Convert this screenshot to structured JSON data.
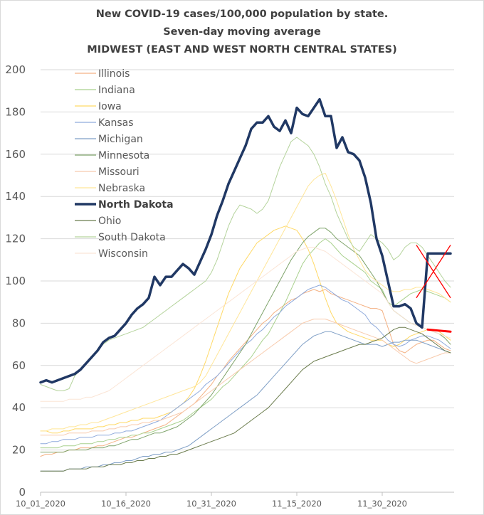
{
  "chart_data": {
    "type": "line",
    "title": [
      "New COVID-19 cases/100,000 population by state.",
      "Seven-day moving average",
      "MIDWEST (EAST AND WEST NORTH CENTRAL STATES)"
    ],
    "xlabel": "",
    "ylabel": "",
    "ylim": [
      0,
      200
    ],
    "y_ticks": [
      0,
      20,
      40,
      60,
      80,
      100,
      120,
      140,
      160,
      180,
      200
    ],
    "x_tick_labels": [
      "10_01_2020",
      "10_16_2020",
      "10_31_2020",
      "11_15_2020",
      "11_30_2020"
    ],
    "x_tick_day_index": [
      0,
      15,
      30,
      45,
      60
    ],
    "grid": "horizontal",
    "legend_position": "top-left",
    "series": [
      {
        "name": "Illinois",
        "color": "#f4b183",
        "width": 1,
        "bold": false,
        "values": [
          17,
          18,
          18,
          19,
          19,
          20,
          20,
          21,
          21,
          21,
          22,
          22,
          23,
          24,
          25,
          26,
          26,
          27,
          28,
          29,
          30,
          31,
          32,
          34,
          36,
          38,
          40,
          42,
          45,
          48,
          51,
          55,
          58,
          62,
          65,
          68,
          71,
          74,
          77,
          80,
          82,
          85,
          87,
          89,
          91,
          92,
          94,
          95,
          96,
          95,
          96,
          94,
          93,
          92,
          91,
          90,
          89,
          88,
          87,
          87,
          86,
          78,
          70,
          67,
          66,
          68,
          70,
          71,
          72,
          72,
          70,
          68,
          67
        ]
      },
      {
        "name": "Indiana",
        "color": "#a9d18e",
        "width": 1,
        "bold": false,
        "values": [
          21,
          21,
          21,
          21,
          22,
          22,
          22,
          23,
          23,
          23,
          24,
          24,
          25,
          25,
          26,
          26,
          27,
          27,
          28,
          28,
          29,
          30,
          31,
          32,
          33,
          34,
          36,
          38,
          40,
          42,
          44,
          47,
          50,
          52,
          55,
          58,
          61,
          64,
          68,
          72,
          75,
          80,
          85,
          90,
          96,
          102,
          108,
          112,
          115,
          118,
          120,
          118,
          115,
          112,
          110,
          108,
          106,
          104,
          100,
          98,
          96,
          90,
          88,
          90,
          92,
          94,
          95,
          96,
          95,
          94,
          93,
          92,
          90
        ]
      },
      {
        "name": "Iowa",
        "color": "#ffd966",
        "width": 1,
        "bold": false,
        "values": [
          29,
          29,
          28,
          28,
          29,
          29,
          30,
          30,
          30,
          30,
          31,
          31,
          32,
          32,
          33,
          33,
          34,
          34,
          35,
          35,
          35,
          36,
          37,
          38,
          40,
          42,
          45,
          49,
          55,
          62,
          70,
          78,
          86,
          94,
          100,
          106,
          110,
          114,
          118,
          120,
          122,
          124,
          125,
          126,
          125,
          124,
          120,
          115,
          108,
          100,
          92,
          85,
          80,
          78,
          76,
          75,
          74,
          73,
          72,
          72,
          72,
          70,
          69,
          70,
          72,
          74,
          75,
          76,
          77,
          77,
          76,
          74,
          72
        ]
      },
      {
        "name": "Kansas",
        "color": "#8faadc",
        "width": 1,
        "bold": false,
        "values": [
          23,
          23,
          24,
          24,
          25,
          25,
          25,
          26,
          26,
          26,
          27,
          27,
          27,
          28,
          28,
          29,
          29,
          30,
          31,
          32,
          33,
          34,
          36,
          38,
          40,
          42,
          44,
          46,
          48,
          51,
          53,
          55,
          58,
          61,
          64,
          67,
          70,
          72,
          75,
          77,
          80,
          83,
          85,
          88,
          90,
          92,
          94,
          96,
          97,
          98,
          97,
          95,
          93,
          91,
          90,
          88,
          86,
          84,
          80,
          78,
          75,
          72,
          70,
          69,
          70,
          72,
          73,
          74,
          74,
          73,
          72,
          70,
          68
        ]
      },
      {
        "name": "Michigan",
        "color": "#7f9fc6",
        "width": 1,
        "bold": false,
        "values": [
          10,
          10,
          10,
          10,
          10,
          11,
          11,
          11,
          12,
          12,
          12,
          13,
          13,
          14,
          14,
          15,
          15,
          16,
          17,
          17,
          18,
          18,
          19,
          19,
          20,
          21,
          22,
          24,
          26,
          28,
          30,
          32,
          34,
          36,
          38,
          40,
          42,
          44,
          46,
          49,
          52,
          55,
          58,
          61,
          64,
          67,
          70,
          72,
          74,
          75,
          76,
          76,
          75,
          74,
          73,
          72,
          71,
          70,
          70,
          70,
          69,
          70,
          71,
          71,
          72,
          72,
          72,
          71,
          70,
          69,
          68,
          67,
          66
        ]
      },
      {
        "name": "Minnesota",
        "color": "#7ea36a",
        "width": 1,
        "bold": false,
        "values": [
          19,
          19,
          19,
          19,
          19,
          20,
          20,
          20,
          20,
          21,
          21,
          21,
          22,
          22,
          23,
          24,
          25,
          25,
          26,
          27,
          28,
          28,
          29,
          30,
          31,
          33,
          35,
          37,
          40,
          43,
          46,
          50,
          54,
          58,
          62,
          66,
          70,
          75,
          80,
          85,
          90,
          95,
          100,
          105,
          110,
          114,
          118,
          121,
          123,
          125,
          125,
          123,
          120,
          118,
          116,
          114,
          112,
          108,
          104,
          100,
          95,
          90,
          86,
          84,
          82,
          80,
          79,
          78,
          77,
          76,
          75,
          73,
          70
        ]
      },
      {
        "name": "Missouri",
        "color": "#f8cbad",
        "width": 1,
        "bold": false,
        "values": [
          27,
          27,
          27,
          27,
          27,
          28,
          28,
          28,
          28,
          29,
          29,
          29,
          30,
          30,
          31,
          31,
          32,
          32,
          33,
          33,
          34,
          34,
          35,
          36,
          37,
          38,
          40,
          42,
          44,
          46,
          48,
          50,
          52,
          54,
          56,
          58,
          60,
          62,
          64,
          66,
          68,
          70,
          72,
          74,
          76,
          78,
          80,
          81,
          82,
          82,
          82,
          81,
          80,
          79,
          78,
          77,
          76,
          75,
          74,
          73,
          72,
          70,
          68,
          66,
          64,
          62,
          61,
          62,
          63,
          64,
          65,
          66,
          66
        ]
      },
      {
        "name": "Nebraska",
        "color": "#ffe699",
        "width": 1,
        "bold": false,
        "values": [
          29,
          29,
          30,
          30,
          30,
          31,
          31,
          32,
          32,
          33,
          33,
          34,
          35,
          36,
          37,
          38,
          39,
          40,
          41,
          42,
          43,
          44,
          45,
          46,
          47,
          48,
          49,
          50,
          52,
          55,
          60,
          65,
          70,
          75,
          80,
          85,
          90,
          95,
          100,
          105,
          110,
          115,
          120,
          125,
          130,
          135,
          140,
          145,
          148,
          150,
          151,
          145,
          138,
          130,
          122,
          115,
          110,
          105,
          102,
          100,
          98,
          96,
          95,
          95,
          96,
          96,
          97,
          97,
          96,
          95,
          94,
          92,
          90
        ]
      },
      {
        "name": "North Dakota",
        "color": "#203864",
        "width": 3.5,
        "bold": true,
        "values": [
          52,
          53,
          52,
          53,
          54,
          55,
          56,
          58,
          61,
          64,
          67,
          71,
          73,
          74,
          77,
          80,
          84,
          87,
          89,
          92,
          102,
          98,
          102,
          102,
          105,
          108,
          106,
          103,
          109,
          115,
          122,
          131,
          138,
          146,
          152,
          158,
          164,
          172,
          175,
          175,
          178,
          173,
          171,
          176,
          170,
          182,
          179,
          178,
          182,
          186,
          178,
          178,
          163,
          168,
          161,
          160,
          157,
          149,
          137,
          120,
          112,
          100,
          88,
          88,
          89,
          87,
          80,
          78,
          113,
          113,
          113,
          113,
          113
        ]
      },
      {
        "name": "Ohio",
        "color": "#6b7c4d",
        "width": 1,
        "bold": false,
        "values": [
          10,
          10,
          10,
          10,
          10,
          11,
          11,
          11,
          11,
          12,
          12,
          12,
          13,
          13,
          13,
          14,
          14,
          15,
          15,
          16,
          16,
          17,
          17,
          18,
          18,
          19,
          20,
          21,
          22,
          23,
          24,
          25,
          26,
          27,
          28,
          30,
          32,
          34,
          36,
          38,
          40,
          43,
          46,
          49,
          52,
          55,
          58,
          60,
          62,
          63,
          64,
          65,
          66,
          67,
          68,
          69,
          70,
          70,
          71,
          72,
          73,
          75,
          77,
          78,
          78,
          77,
          76,
          75,
          73,
          71,
          69,
          67,
          66
        ]
      },
      {
        "name": "South Dakota",
        "color": "#b4d39b",
        "width": 1,
        "bold": false,
        "values": [
          51,
          50,
          49,
          48,
          48,
          49,
          55,
          58,
          61,
          64,
          67,
          70,
          72,
          73,
          74,
          75,
          76,
          77,
          78,
          80,
          82,
          84,
          86,
          88,
          90,
          92,
          94,
          96,
          98,
          100,
          104,
          110,
          118,
          126,
          132,
          136,
          135,
          134,
          132,
          134,
          138,
          146,
          154,
          160,
          166,
          168,
          166,
          164,
          160,
          154,
          146,
          140,
          132,
          126,
          120,
          116,
          114,
          118,
          122,
          120,
          118,
          115,
          110,
          112,
          116,
          118,
          118,
          116,
          112,
          108,
          104,
          100,
          97
        ]
      },
      {
        "name": "Wisconsin",
        "color": "#fbe5d6",
        "width": 1,
        "bold": false,
        "values": [
          43,
          43,
          43,
          43,
          43,
          44,
          44,
          44,
          45,
          45,
          46,
          47,
          48,
          50,
          52,
          54,
          56,
          58,
          60,
          62,
          64,
          66,
          68,
          70,
          72,
          74,
          76,
          78,
          80,
          82,
          84,
          86,
          88,
          90,
          92,
          94,
          96,
          98,
          100,
          102,
          104,
          106,
          108,
          110,
          112,
          114,
          115,
          116,
          116,
          115,
          114,
          112,
          110,
          108,
          106,
          104,
          102,
          100,
          98,
          96,
          94,
          90,
          86,
          84,
          82,
          80,
          79,
          78,
          77,
          76,
          75,
          74,
          73
        ]
      }
    ],
    "annotations": [
      {
        "type": "cross",
        "color": "#ff0000",
        "day_index_range": [
          66,
          72
        ],
        "y_range": [
          92,
          117
        ]
      },
      {
        "type": "line",
        "color": "#ff0000",
        "points": [
          [
            68,
            77
          ],
          [
            72,
            76
          ]
        ]
      }
    ]
  }
}
